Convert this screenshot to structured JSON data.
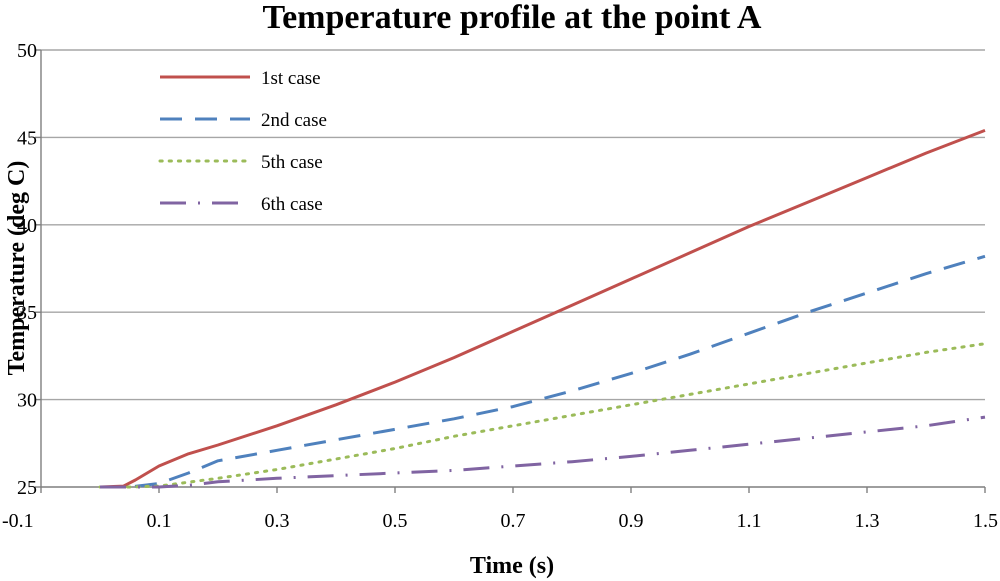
{
  "chart_data": {
    "type": "line",
    "title": "Temperature profile at the point A",
    "xlabel": "Time (s)",
    "ylabel": "Temperature (deg C)",
    "xlim": [
      -0.1,
      1.5
    ],
    "ylim": [
      25,
      50
    ],
    "xticks": [
      "-0.1",
      "0.1",
      "0.3",
      "0.5",
      "0.7",
      "0.9",
      "1.1",
      "1.3",
      "1.5"
    ],
    "yticks": [
      "25",
      "30",
      "35",
      "40",
      "45",
      "50"
    ],
    "grid": true,
    "legend_position": "top-left",
    "series": [
      {
        "name": "1st case",
        "color": "#c0504d",
        "style": "solid",
        "x": [
          0.0,
          0.04,
          0.06,
          0.1,
          0.15,
          0.2,
          0.3,
          0.4,
          0.5,
          0.6,
          0.7,
          0.8,
          0.9,
          1.0,
          1.1,
          1.2,
          1.3,
          1.4,
          1.5
        ],
        "y": [
          25.0,
          25.05,
          25.4,
          26.2,
          26.9,
          27.4,
          28.5,
          29.7,
          31.0,
          32.4,
          33.9,
          35.4,
          36.9,
          38.4,
          39.9,
          41.3,
          42.7,
          44.1,
          45.4
        ]
      },
      {
        "name": "2nd case",
        "color": "#4f81bd",
        "style": "dashed",
        "x": [
          0.0,
          0.05,
          0.1,
          0.15,
          0.2,
          0.3,
          0.4,
          0.5,
          0.6,
          0.7,
          0.8,
          0.9,
          1.0,
          1.1,
          1.2,
          1.3,
          1.4,
          1.5
        ],
        "y": [
          25.0,
          25.0,
          25.2,
          25.8,
          26.5,
          27.1,
          27.7,
          28.3,
          28.9,
          29.6,
          30.5,
          31.5,
          32.6,
          33.8,
          35.0,
          36.1,
          37.2,
          38.2
        ]
      },
      {
        "name": "5th case",
        "color": "#9bbb59",
        "style": "dotted",
        "x": [
          0.0,
          0.05,
          0.1,
          0.2,
          0.3,
          0.4,
          0.5,
          0.6,
          0.7,
          0.8,
          0.9,
          1.0,
          1.1,
          1.2,
          1.3,
          1.4,
          1.5
        ],
        "y": [
          25.0,
          25.0,
          25.05,
          25.5,
          26.0,
          26.6,
          27.2,
          27.9,
          28.5,
          29.1,
          29.7,
          30.3,
          30.9,
          31.5,
          32.1,
          32.7,
          33.2
        ]
      },
      {
        "name": "6th case",
        "color": "#8064a2",
        "style": "dashdot",
        "x": [
          0.0,
          0.1,
          0.15,
          0.2,
          0.3,
          0.4,
          0.5,
          0.6,
          0.7,
          0.8,
          0.9,
          1.0,
          1.1,
          1.2,
          1.3,
          1.4,
          1.5
        ],
        "y": [
          25.0,
          25.0,
          25.1,
          25.3,
          25.5,
          25.65,
          25.8,
          25.95,
          26.2,
          26.45,
          26.75,
          27.1,
          27.45,
          27.8,
          28.15,
          28.5,
          29.0
        ]
      }
    ]
  }
}
